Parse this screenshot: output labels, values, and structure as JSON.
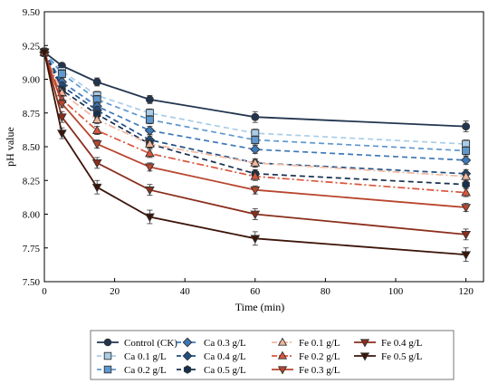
{
  "chart_data": {
    "type": "line",
    "xlabel": "Time (min)",
    "ylabel": "pH value",
    "xlim": [
      0,
      125
    ],
    "ylim": [
      7.5,
      9.5
    ],
    "xticks": [
      0,
      20,
      40,
      60,
      80,
      100,
      120
    ],
    "yticks": [
      7.5,
      7.75,
      8.0,
      8.25,
      8.5,
      8.75,
      9.0,
      9.25,
      9.5
    ],
    "ytick_labels": [
      "7.50",
      "7.75",
      "8.00",
      "8.25",
      "8.50",
      "8.75",
      "9.00",
      "9.25",
      "9.50"
    ],
    "grid": false,
    "legend_position": "bottom",
    "x": [
      0,
      5,
      15,
      30,
      60,
      120
    ],
    "series": [
      {
        "name": "Control (CK)",
        "color": "#22354f",
        "dash": "solid",
        "marker": "circle",
        "values": [
          9.2,
          9.1,
          8.98,
          8.85,
          8.72,
          8.65
        ],
        "errors": [
          0.03,
          0.02,
          0.03,
          0.03,
          0.04,
          0.04
        ]
      },
      {
        "name": "Ca 0.1 g/L",
        "color": "#a9cde8",
        "dash": "dash",
        "marker": "square",
        "values": [
          9.2,
          9.06,
          8.88,
          8.75,
          8.6,
          8.52
        ],
        "errors": [
          0.03,
          0.03,
          0.03,
          0.03,
          0.03,
          0.03
        ]
      },
      {
        "name": "Ca 0.2 g/L",
        "color": "#5f98ce",
        "dash": "dash",
        "marker": "square",
        "values": [
          9.2,
          9.04,
          8.85,
          8.7,
          8.55,
          8.47
        ],
        "errors": [
          0.03,
          0.03,
          0.03,
          0.03,
          0.03,
          0.03
        ]
      },
      {
        "name": "Ca 0.3 g/L",
        "color": "#3d78b8",
        "dash": "dash",
        "marker": "diamond",
        "values": [
          9.2,
          8.98,
          8.8,
          8.62,
          8.48,
          8.4
        ],
        "errors": [
          0.03,
          0.03,
          0.03,
          0.03,
          0.03,
          0.03
        ]
      },
      {
        "name": "Ca 0.4 g/L",
        "color": "#1f4e86",
        "dash": "dash",
        "marker": "diamond",
        "values": [
          9.2,
          8.95,
          8.77,
          8.55,
          8.38,
          8.3
        ],
        "errors": [
          0.03,
          0.03,
          0.03,
          0.03,
          0.03,
          0.03
        ]
      },
      {
        "name": "Ca 0.5 g/L",
        "color": "#16304f",
        "dash": "dash",
        "marker": "hexagon",
        "values": [
          9.2,
          8.92,
          8.74,
          8.52,
          8.3,
          8.22
        ],
        "errors": [
          0.03,
          0.03,
          0.03,
          0.03,
          0.03,
          0.03
        ]
      },
      {
        "name": "Fe 0.1 g/L",
        "color": "#f0b8a0",
        "dash": "dashdot",
        "marker": "triangle-up",
        "values": [
          9.2,
          8.9,
          8.7,
          8.52,
          8.38,
          8.28
        ],
        "errors": [
          0.03,
          0.03,
          0.03,
          0.03,
          0.03,
          0.03
        ]
      },
      {
        "name": "Fe 0.2 g/L",
        "color": "#d9553c",
        "dash": "dashdot",
        "marker": "triangle-up",
        "values": [
          9.2,
          8.85,
          8.62,
          8.45,
          8.28,
          8.16
        ],
        "errors": [
          0.03,
          0.03,
          0.03,
          0.03,
          0.03,
          0.03
        ]
      },
      {
        "name": "Fe 0.3 g/L",
        "color": "#b8462e",
        "dash": "solid",
        "marker": "triangle-down",
        "values": [
          9.2,
          8.82,
          8.52,
          8.35,
          8.18,
          8.05
        ],
        "errors": [
          0.03,
          0.03,
          0.03,
          0.03,
          0.03,
          0.03
        ]
      },
      {
        "name": "Fe 0.4 g/L",
        "color": "#8b2e1c",
        "dash": "solid",
        "marker": "triangle-down",
        "values": [
          9.2,
          8.72,
          8.38,
          8.18,
          8.0,
          7.85
        ],
        "errors": [
          0.03,
          0.04,
          0.04,
          0.04,
          0.04,
          0.04
        ]
      },
      {
        "name": "Fe 0.5 g/L",
        "color": "#3b1408",
        "dash": "solid",
        "marker": "triangle-down",
        "values": [
          9.2,
          8.6,
          8.2,
          7.98,
          7.82,
          7.7
        ],
        "errors": [
          0.03,
          0.04,
          0.05,
          0.05,
          0.05,
          0.05
        ]
      }
    ]
  }
}
